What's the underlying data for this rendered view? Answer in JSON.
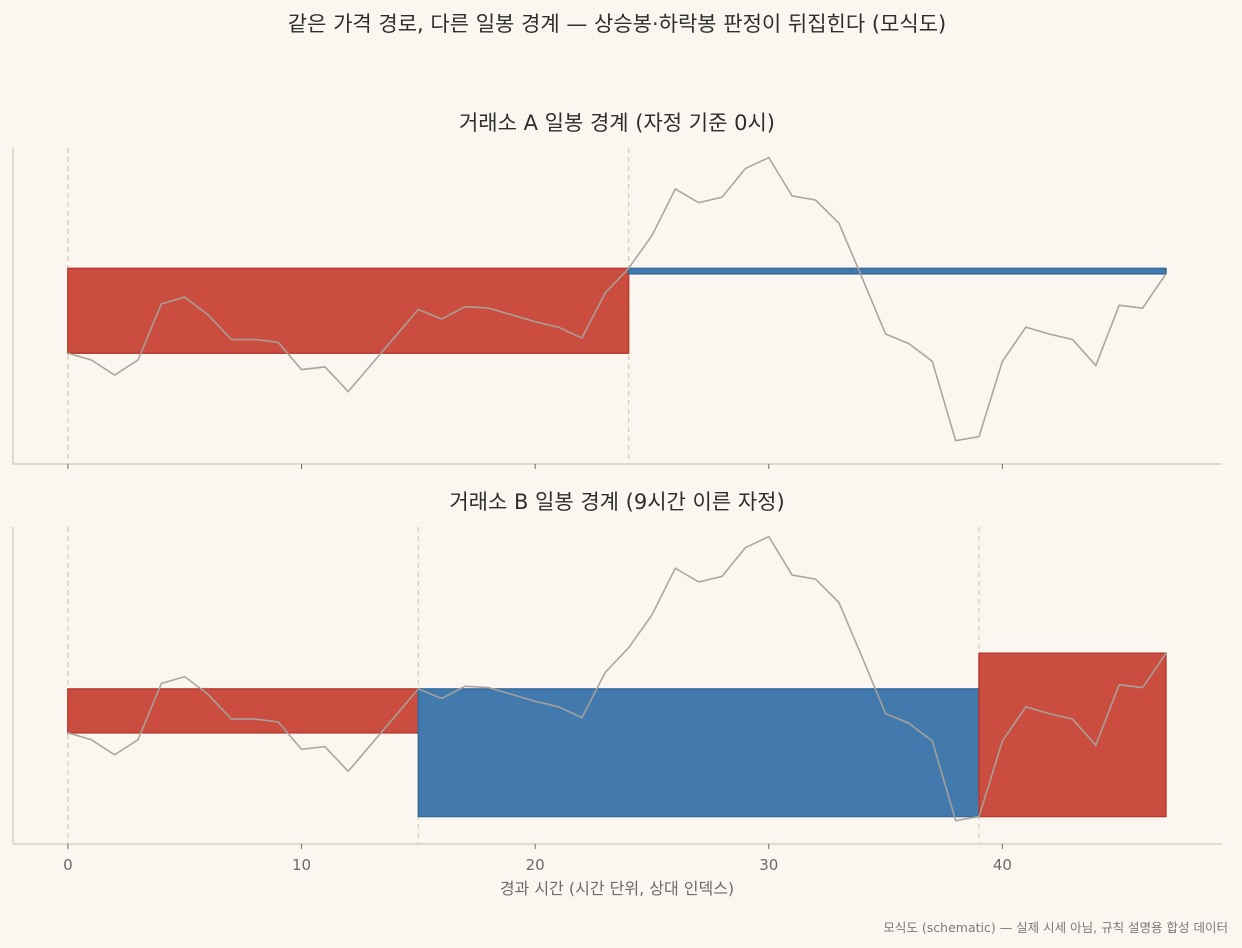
{
  "chart_data": {
    "title": "같은 가격 경로, 다른 일봉 경계 — 상승봉·하락봉 판정이 뒤집힌다 (모식도)",
    "type": "line",
    "xlabel": "경과 시간 (시간 단위, 상대 인덱스)",
    "x_ticks": [
      0,
      10,
      20,
      30,
      40
    ],
    "xlim": [
      -2.35,
      49.4
    ],
    "ylim": [
      -0.35,
      11.2
    ],
    "grid": false,
    "price_path": {
      "x": [
        0,
        1,
        2,
        3,
        4,
        5,
        6,
        7,
        8,
        9,
        10,
        11,
        12,
        13,
        14,
        15,
        16,
        17,
        18,
        19,
        20,
        21,
        22,
        23,
        24,
        25,
        26,
        27,
        28,
        29,
        30,
        31,
        32,
        33,
        34,
        35,
        36,
        37,
        38,
        39,
        40,
        41,
        42,
        43,
        44,
        45,
        46,
        47
      ],
      "y": [
        3.7,
        3.45,
        2.9,
        3.45,
        5.5,
        5.75,
        5.1,
        4.2,
        4.2,
        4.1,
        3.1,
        3.2,
        2.3,
        3.3,
        4.3,
        5.3,
        4.95,
        5.4,
        5.35,
        5.1,
        4.85,
        4.65,
        4.25,
        5.9,
        6.8,
        8.0,
        9.7,
        9.2,
        9.4,
        10.45,
        10.85,
        9.45,
        9.3,
        8.45,
        6.45,
        4.4,
        4.05,
        3.4,
        0.5,
        0.65,
        3.4,
        4.65,
        4.4,
        4.2,
        3.25,
        5.45,
        5.35,
        6.6
      ],
      "color": "#a6a29b"
    },
    "panels": [
      {
        "title": "거래소 A 일봉 경계 (자정 기준 0시)",
        "boundaries": [
          0,
          24
        ],
        "candles": [
          {
            "start": 0,
            "end": 24,
            "open": 3.7,
            "close": 6.8,
            "direction": "up"
          },
          {
            "start": 24,
            "end": 47,
            "open": 6.8,
            "close": 6.6,
            "direction": "down"
          }
        ]
      },
      {
        "title": "거래소 B 일봉 경계 (9시간 이른 자정)",
        "boundaries": [
          0,
          15,
          39
        ],
        "candles": [
          {
            "start": 0,
            "end": 15,
            "open": 3.7,
            "close": 5.3,
            "direction": "up"
          },
          {
            "start": 15,
            "end": 39,
            "open": 5.3,
            "close": 0.65,
            "direction": "down"
          },
          {
            "start": 39,
            "end": 47,
            "open": 0.65,
            "close": 6.6,
            "direction": "up"
          }
        ]
      }
    ],
    "colors": {
      "up": "#c8473a",
      "down": "#3d76ab",
      "boundary": "#d6cfb8",
      "axis": "#d8d0bc"
    }
  },
  "footnote": "모식도 (schematic) — 실제 시세 아님, 규칙 설명용 합성 데이터"
}
